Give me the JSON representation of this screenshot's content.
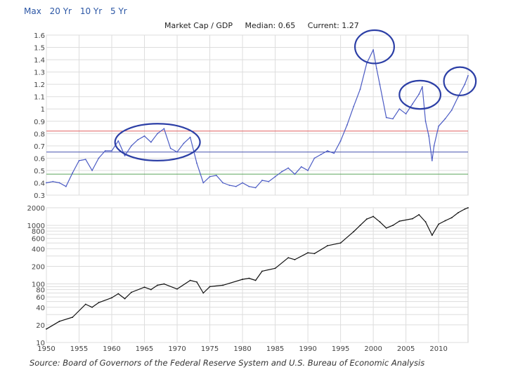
{
  "range_links": [
    "Max",
    "20 Yr",
    "10 Yr",
    "5 Yr"
  ],
  "title": {
    "metric": "Market Cap / GDP",
    "median": "Median: 0.65",
    "current": "Current: 1.27"
  },
  "source": "Source: Board of Governors of the Federal Reserve System and U.S. Bureau of Economic Analysis",
  "colors": {
    "ratio_line": "#4b5bc4",
    "index_line": "#111111",
    "ref_red": "#e06060",
    "ref_blue": "#4a55b0",
    "ref_green": "#5aa55a",
    "highlight_circles": "#2c3fa6",
    "grid": "#dddddd"
  },
  "chart_data": [
    {
      "type": "line",
      "x_range": [
        1950,
        2014.5
      ],
      "ylim": [
        0.3,
        1.6
      ],
      "y_ticks": [
        "1.6",
        "1.5",
        "1.4",
        "1.3",
        "1.2",
        "1.1",
        "1",
        "0.9",
        "0.8",
        "0.7",
        "0.6",
        "0.5",
        "0.4",
        "0.3"
      ],
      "grid": true,
      "reference_lines": [
        {
          "label": "",
          "y": 0.82,
          "color": "red"
        },
        {
          "label": "",
          "y": 0.65,
          "color": "blue"
        },
        {
          "label": "",
          "y": 0.47,
          "color": "green"
        }
      ],
      "highlights": [
        {
          "x_range": [
            1960.5,
            1973.5
          ],
          "y_range": [
            0.58,
            0.88
          ]
        },
        {
          "x_range": [
            1997.2,
            2003.2
          ],
          "y_range": [
            1.37,
            1.64
          ]
        },
        {
          "x_range": [
            2004,
            2010.3
          ],
          "y_range": [
            1.0,
            1.23
          ]
        },
        {
          "x_range": [
            2010.8,
            2015.7
          ],
          "y_range": [
            1.11,
            1.34
          ]
        }
      ],
      "series": [
        {
          "x": [
            1950,
            1951,
            1952,
            1953,
            1954,
            1955,
            1956,
            1957,
            1958,
            1959,
            1960,
            1961,
            1962,
            1963,
            1964,
            1965,
            1966,
            1967,
            1968,
            1969,
            1970,
            1971,
            1972,
            1973,
            1974,
            1975,
            1976,
            1977,
            1978,
            1979,
            1980,
            1981,
            1982,
            1983,
            1984,
            1985,
            1986,
            1987,
            1988,
            1989,
            1990,
            1991,
            1992,
            1993,
            1994,
            1995,
            1996,
            1997,
            1998,
            1999,
            2000,
            2000.5,
            2001,
            2002,
            2003,
            2004,
            2005,
            2006,
            2007,
            2007.5,
            2008,
            2008.5,
            2009,
            2009.3,
            2010,
            2011,
            2012,
            2013,
            2014,
            2014.5
          ],
          "values": [
            0.4,
            0.41,
            0.4,
            0.37,
            0.48,
            0.58,
            0.59,
            0.5,
            0.6,
            0.66,
            0.66,
            0.74,
            0.62,
            0.7,
            0.75,
            0.78,
            0.73,
            0.8,
            0.84,
            0.68,
            0.65,
            0.72,
            0.77,
            0.56,
            0.4,
            0.45,
            0.46,
            0.4,
            0.38,
            0.37,
            0.4,
            0.37,
            0.36,
            0.42,
            0.41,
            0.45,
            0.49,
            0.52,
            0.47,
            0.53,
            0.5,
            0.6,
            0.63,
            0.66,
            0.64,
            0.74,
            0.87,
            1.02,
            1.16,
            1.37,
            1.48,
            1.33,
            1.2,
            0.93,
            0.92,
            1.0,
            0.96,
            1.04,
            1.12,
            1.18,
            0.9,
            0.78,
            0.58,
            0.7,
            0.86,
            0.92,
            0.99,
            1.1,
            1.2,
            1.27
          ]
        }
      ]
    },
    {
      "type": "line",
      "scale": "log",
      "x_range": [
        1950,
        2014.5
      ],
      "ylim": [
        10,
        2000
      ],
      "y_ticks": [
        "2000",
        "1000",
        "800",
        "600",
        "400",
        "200",
        "100",
        "80",
        "60",
        "40",
        "20",
        "10"
      ],
      "x_ticks": [
        "1950",
        "1955",
        "1960",
        "1965",
        "1970",
        "1975",
        "1980",
        "1985",
        "1990",
        "1995",
        "2000",
        "2005",
        "2010"
      ],
      "grid": true,
      "series": [
        {
          "x": [
            1950,
            1952,
            1954,
            1956,
            1957,
            1958,
            1960,
            1961,
            1962,
            1963,
            1965,
            1966,
            1967,
            1968,
            1970,
            1972,
            1973,
            1974,
            1975,
            1977,
            1980,
            1981,
            1982,
            1983,
            1985,
            1987,
            1988,
            1990,
            1991,
            1993,
            1995,
            1997,
            1998,
            1999,
            2000,
            2001,
            2002,
            2003,
            2004,
            2006,
            2007,
            2008,
            2009,
            2010,
            2011,
            2012,
            2013,
            2014,
            2014.5
          ],
          "values": [
            17,
            23,
            27,
            45,
            40,
            48,
            58,
            68,
            56,
            72,
            88,
            80,
            95,
            100,
            82,
            115,
            108,
            70,
            90,
            95,
            120,
            125,
            115,
            165,
            185,
            280,
            260,
            340,
            330,
            450,
            500,
            780,
            1000,
            1280,
            1420,
            1150,
            900,
            1000,
            1180,
            1300,
            1520,
            1150,
            680,
            1050,
            1200,
            1350,
            1650,
            1900,
            2000
          ]
        }
      ]
    }
  ]
}
